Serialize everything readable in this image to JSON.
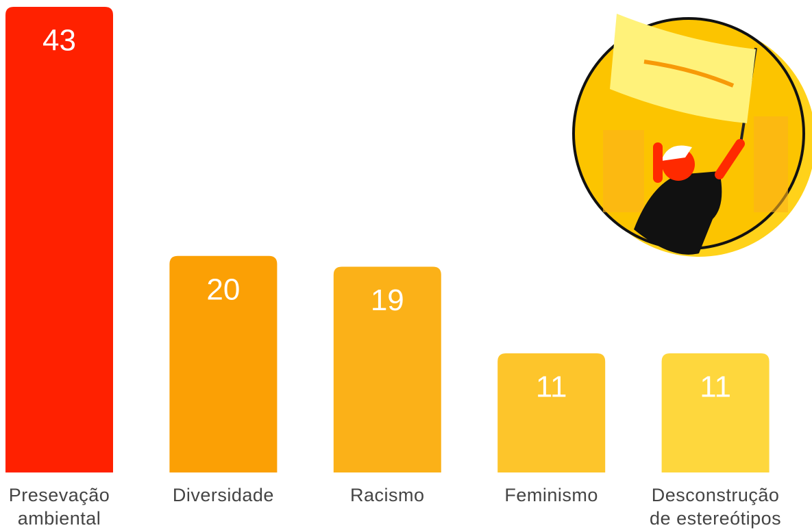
{
  "chart_data": {
    "type": "bar",
    "categories": [
      "Presevação ambiental",
      "Diversidade",
      "Racismo",
      "Feminismo",
      "Desconstrução de estereótipos"
    ],
    "values": [
      43,
      20,
      19,
      11,
      11
    ],
    "colors": [
      "#ff2100",
      "#fba005",
      "#fbb118",
      "#fdc52b",
      "#fed73d"
    ],
    "ylim": [
      0,
      43
    ]
  }
}
